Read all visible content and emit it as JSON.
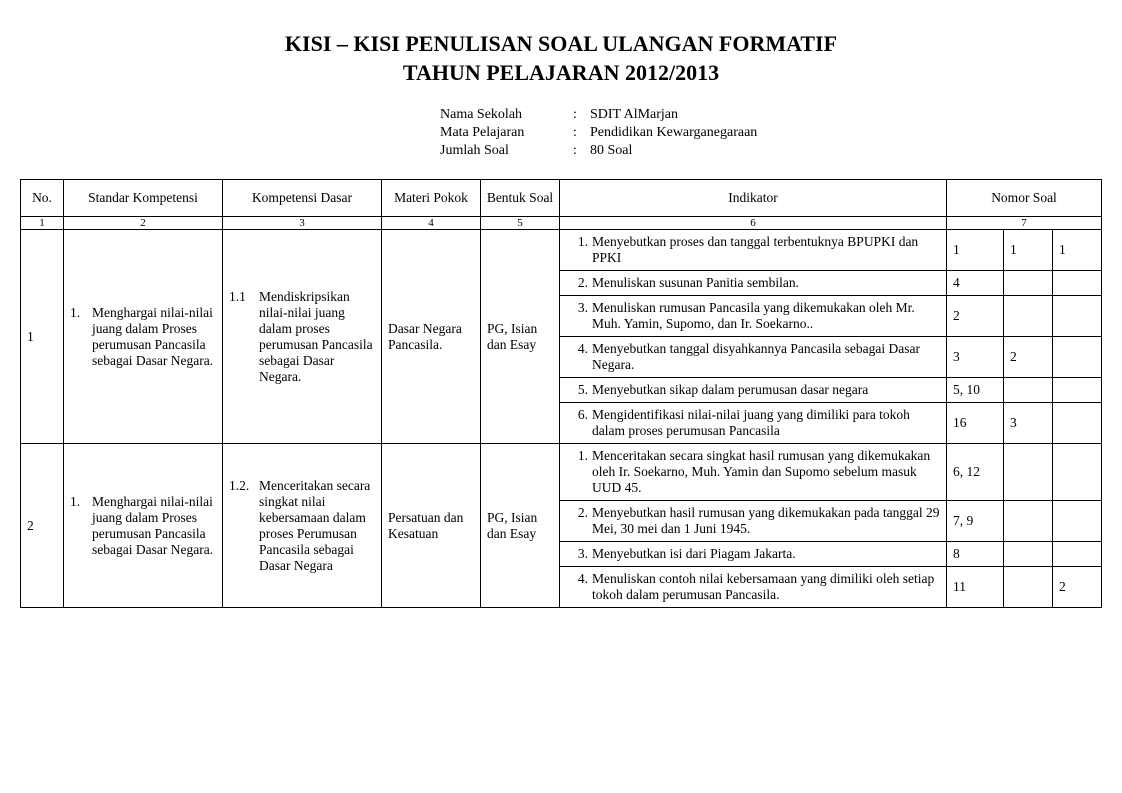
{
  "title_line1": "KISI – KISI PENULISAN SOAL ULANGAN FORMATIF",
  "title_line2": "TAHUN PELAJARAN 2012/2013",
  "meta": {
    "nama_sekolah_label": "Nama Sekolah",
    "nama_sekolah": "SDIT AlMarjan",
    "mata_pelajaran_label": "Mata Pelajaran",
    "mata_pelajaran": "Pendidikan Kewarganegaraan",
    "jumlah_soal_label": "Jumlah Soal",
    "jumlah_soal": "80 Soal",
    "colon": ":"
  },
  "headers": {
    "no": "No.",
    "sk": "Standar Kompetensi",
    "kd": "Kompetensi Dasar",
    "mp": "Materi Pokok",
    "bs": "Bentuk Soal",
    "ind": "Indikator",
    "ns": "Nomor Soal"
  },
  "colnums": [
    "1",
    "2",
    "3",
    "4",
    "5",
    "6",
    "7"
  ],
  "rows": [
    {
      "no": "1",
      "sk_num": "1.",
      "sk_text": "Menghargai nilai-nilai juang dalam Proses perumusan Pancasila sebagai Dasar Negara.",
      "kd_num": "1.1",
      "kd_text": "Mendiskripsikan nilai-nilai juang dalam proses perumusan Pancasila sebagai Dasar Negara.",
      "mp": "Dasar Negara Pancasila.",
      "bs": "PG, Isian dan Esay",
      "inds": [
        {
          "n": "1.",
          "t": "Menyebutkan proses dan tanggal terbentuknya BPUPKI dan PPKI",
          "ns": [
            "1",
            "1",
            "1"
          ]
        },
        {
          "n": "2.",
          "t": "Menuliskan susunan Panitia sembilan.",
          "ns": [
            "4",
            "",
            ""
          ]
        },
        {
          "n": "3.",
          "t": "Menuliskan rumusan Pancasila yang dikemukakan oleh Mr. Muh. Yamin, Supomo, dan Ir. Soekarno..",
          "ns": [
            "2",
            "",
            ""
          ]
        },
        {
          "n": "4.",
          "t": "Menyebutkan tanggal disyahkannya Pancasila sebagai Dasar Negara.",
          "ns": [
            "3",
            "2",
            ""
          ]
        },
        {
          "n": "5.",
          "t": "Menyebutkan sikap dalam perumusan dasar negara",
          "ns": [
            "5, 10",
            "",
            ""
          ]
        },
        {
          "n": "6.",
          "t": "Mengidentifikasi nilai-nilai juang yang dimiliki para tokoh dalam proses perumusan Pancasila",
          "ns": [
            "16",
            "3",
            ""
          ]
        }
      ]
    },
    {
      "no": "2",
      "sk_num": "1.",
      "sk_text": "Menghargai nilai-nilai juang dalam Proses perumusan Pancasila sebagai Dasar Negara.",
      "kd_num": "1.2.",
      "kd_text": "Menceritakan secara singkat nilai kebersamaan dalam proses Perumusan Pancasila sebagai Dasar Negara",
      "mp": "Persatuan dan Kesatuan",
      "bs": "PG, Isian dan Esay",
      "inds": [
        {
          "n": "1.",
          "t": "Menceritakan secara singkat hasil rumusan yang dikemukakan oleh Ir. Soekarno, Muh. Yamin dan Supomo sebelum masuk UUD 45.",
          "ns": [
            "6, 12",
            "",
            ""
          ]
        },
        {
          "n": "2.",
          "t": "Menyebutkan hasil rumusan yang dikemukakan pada tanggal 29 Mei, 30 mei dan 1 Juni 1945.",
          "ns": [
            "7, 9",
            "",
            ""
          ]
        },
        {
          "n": "3.",
          "t": "Menyebutkan isi dari Piagam Jakarta.",
          "ns": [
            "8",
            "",
            ""
          ]
        },
        {
          "n": "4.",
          "t": "Menuliskan contoh nilai kebersamaan yang dimiliki oleh setiap tokoh dalam perumusan Pancasila.",
          "ns": [
            "11",
            "",
            "2"
          ]
        }
      ]
    }
  ]
}
